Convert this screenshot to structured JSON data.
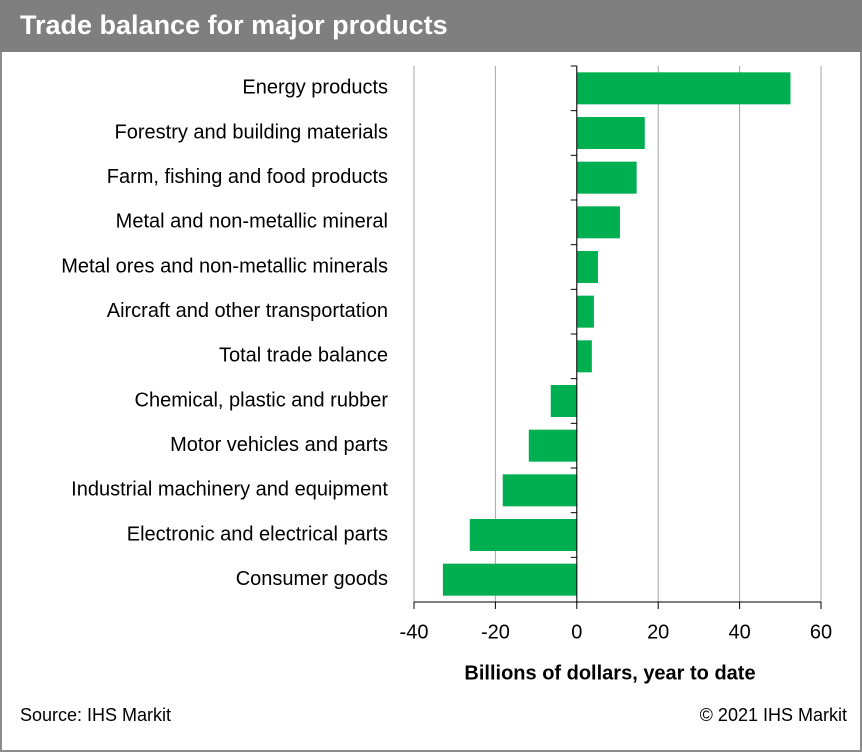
{
  "chart_data": {
    "type": "bar",
    "orientation": "horizontal",
    "title": "Trade balance for major products",
    "xlabel": "Billions of dollars, year to date",
    "source": "Source: IHS Markit",
    "copyright": "© 2021 IHS Markit",
    "categories": [
      "Energy products",
      "Forestry and building materials",
      "Farm, fishing and food products",
      "Metal and non-metallic mineral",
      "Metal ores and non-metallic minerals",
      "Aircraft and other transportation",
      "Total trade balance",
      "Chemical, plastic and rubber",
      "Motor vehicles and parts",
      "Industrial machinery and equipment",
      "Electronic and electrical parts",
      "Consumer goods"
    ],
    "values": [
      52.5,
      16.7,
      14.7,
      10.6,
      5.2,
      4.2,
      3.7,
      -6.4,
      -11.8,
      -18.2,
      -26.3,
      -32.9
    ],
    "color": "#00b050",
    "xlim": [
      -40,
      60
    ],
    "xticks": [
      -40,
      -20,
      0,
      20,
      40,
      60
    ],
    "grid": true
  }
}
